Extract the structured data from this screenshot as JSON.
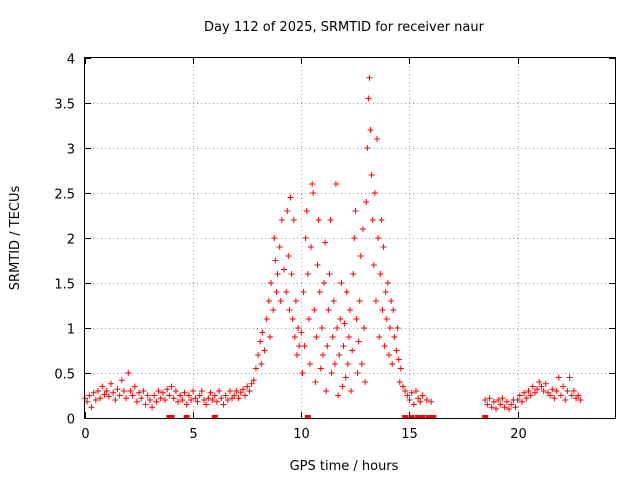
{
  "chart_data": {
    "type": "scatter",
    "title": "Day 112 of 2025, SRMTID for receiver naur",
    "xlabel": "GPS time / hours",
    "ylabel": "SRMTID / TECUs",
    "xlim": [
      0,
      24.5
    ],
    "ylim": [
      0,
      4
    ],
    "xticks": [
      0,
      5,
      10,
      15,
      20
    ],
    "yticks": [
      0,
      0.5,
      1,
      1.5,
      2,
      2.5,
      3,
      3.5,
      4
    ],
    "ytick_labels": [
      "0",
      "0.5",
      "1",
      "1.5",
      "2",
      "2.5",
      "3",
      "3.5",
      "4"
    ],
    "grid": true,
    "marker": "+",
    "series": [
      {
        "name": "SRMTID",
        "color": "#ff0000",
        "points": [
          [
            0.0,
            0.22
          ],
          [
            0.1,
            0.18
          ],
          [
            0.2,
            0.25
          ],
          [
            0.3,
            0.12
          ],
          [
            0.4,
            0.28
          ],
          [
            0.5,
            0.2
          ],
          [
            0.6,
            0.3
          ],
          [
            0.7,
            0.22
          ],
          [
            0.8,
            0.35
          ],
          [
            0.9,
            0.26
          ],
          [
            1.0,
            0.3
          ],
          [
            1.1,
            0.24
          ],
          [
            1.2,
            0.38
          ],
          [
            1.3,
            0.28
          ],
          [
            1.4,
            0.2
          ],
          [
            1.5,
            0.32
          ],
          [
            1.6,
            0.25
          ],
          [
            1.7,
            0.42
          ],
          [
            1.8,
            0.3
          ],
          [
            1.9,
            0.22
          ],
          [
            2.0,
            0.5
          ],
          [
            2.1,
            0.3
          ],
          [
            2.2,
            0.25
          ],
          [
            2.3,
            0.35
          ],
          [
            2.4,
            0.18
          ],
          [
            2.5,
            0.28
          ],
          [
            2.6,
            0.22
          ],
          [
            2.7,
            0.3
          ],
          [
            2.8,
            0.15
          ],
          [
            2.9,
            0.25
          ],
          [
            3.0,
            0.2
          ],
          [
            3.1,
            0.12
          ],
          [
            3.2,
            0.25
          ],
          [
            3.3,
            0.18
          ],
          [
            3.4,
            0.3
          ],
          [
            3.5,
            0.22
          ],
          [
            3.6,
            0.28
          ],
          [
            3.7,
            0.2
          ],
          [
            3.8,
            0.32
          ],
          [
            3.9,
            0.25
          ],
          [
            4.0,
            0.35
          ],
          [
            4.1,
            0.22
          ],
          [
            4.2,
            0.3
          ],
          [
            4.3,
            0.18
          ],
          [
            4.4,
            0.25
          ],
          [
            4.5,
            0.2
          ],
          [
            4.6,
            0.28
          ],
          [
            4.7,
            0.15
          ],
          [
            4.8,
            0.25
          ],
          [
            4.9,
            0.2
          ],
          [
            5.0,
            0.3
          ],
          [
            5.1,
            0.22
          ],
          [
            5.2,
            0.18
          ],
          [
            5.3,
            0.25
          ],
          [
            5.4,
            0.3
          ],
          [
            5.5,
            0.2
          ],
          [
            5.6,
            0.15
          ],
          [
            5.7,
            0.22
          ],
          [
            5.8,
            0.28
          ],
          [
            5.9,
            0.2
          ],
          [
            6.0,
            0.25
          ],
          [
            6.1,
            0.18
          ],
          [
            6.2,
            0.3
          ],
          [
            6.3,
            0.22
          ],
          [
            6.4,
            0.15
          ],
          [
            6.5,
            0.25
          ],
          [
            6.6,
            0.2
          ],
          [
            6.7,
            0.3
          ],
          [
            6.8,
            0.22
          ],
          [
            6.9,
            0.25
          ],
          [
            7.0,
            0.3
          ],
          [
            7.1,
            0.22
          ],
          [
            7.2,
            0.28
          ],
          [
            7.3,
            0.32
          ],
          [
            7.4,
            0.25
          ],
          [
            7.5,
            0.35
          ],
          [
            7.6,
            0.3
          ],
          [
            7.7,
            0.38
          ],
          [
            7.8,
            0.42
          ],
          [
            7.9,
            0.55
          ],
          [
            8.0,
            0.7
          ],
          [
            8.1,
            0.85
          ],
          [
            8.15,
            0.6
          ],
          [
            8.2,
            0.95
          ],
          [
            8.3,
            0.75
          ],
          [
            8.4,
            1.1
          ],
          [
            8.5,
            1.3
          ],
          [
            8.55,
            0.9
          ],
          [
            8.6,
            1.5
          ],
          [
            8.7,
            1.2
          ],
          [
            8.75,
            2.0
          ],
          [
            8.8,
            1.75
          ],
          [
            8.85,
            1.4
          ],
          [
            8.9,
            1.6
          ],
          [
            9.0,
            1.9
          ],
          [
            9.05,
            1.3
          ],
          [
            9.1,
            2.2
          ],
          [
            9.2,
            1.65
          ],
          [
            9.3,
            1.4
          ],
          [
            9.35,
            2.3
          ],
          [
            9.4,
            1.8
          ],
          [
            9.45,
            1.2
          ],
          [
            9.5,
            2.45
          ],
          [
            9.55,
            1.6
          ],
          [
            9.6,
            1.1
          ],
          [
            9.65,
            2.2
          ],
          [
            9.7,
            0.9
          ],
          [
            9.75,
            1.3
          ],
          [
            9.8,
            0.7
          ],
          [
            9.85,
            1.0
          ],
          [
            9.9,
            0.8
          ],
          [
            10.0,
            0.95
          ],
          [
            10.05,
            0.5
          ],
          [
            10.1,
            1.4
          ],
          [
            10.15,
            0.8
          ],
          [
            10.2,
            2.0
          ],
          [
            10.25,
            2.3
          ],
          [
            10.3,
            1.6
          ],
          [
            10.35,
            1.1
          ],
          [
            10.4,
            0.6
          ],
          [
            10.45,
            1.9
          ],
          [
            10.5,
            2.6
          ],
          [
            10.55,
            2.5
          ],
          [
            10.6,
            1.2
          ],
          [
            10.65,
            0.4
          ],
          [
            10.7,
            0.9
          ],
          [
            10.75,
            1.7
          ],
          [
            10.8,
            2.2
          ],
          [
            10.85,
            1.4
          ],
          [
            10.9,
            0.55
          ],
          [
            10.95,
            1.0
          ],
          [
            11.0,
            0.7
          ],
          [
            11.05,
            1.5
          ],
          [
            11.1,
            1.95
          ],
          [
            11.15,
            0.3
          ],
          [
            11.2,
            0.8
          ],
          [
            11.25,
            1.2
          ],
          [
            11.3,
            1.6
          ],
          [
            11.35,
            2.2
          ],
          [
            11.4,
            0.5
          ],
          [
            11.45,
            0.9
          ],
          [
            11.5,
            1.3
          ],
          [
            11.55,
            0.6
          ],
          [
            11.6,
            2.6
          ],
          [
            11.65,
            1.0
          ],
          [
            11.7,
            0.25
          ],
          [
            11.75,
            0.7
          ],
          [
            11.8,
            1.1
          ],
          [
            11.85,
            1.5
          ],
          [
            11.9,
            0.35
          ],
          [
            11.95,
            0.8
          ],
          [
            12.0,
            1.05
          ],
          [
            12.05,
            0.45
          ],
          [
            12.1,
            1.4
          ],
          [
            12.15,
            0.6
          ],
          [
            12.2,
            0.9
          ],
          [
            12.25,
            1.2
          ],
          [
            12.3,
            0.3
          ],
          [
            12.35,
            0.75
          ],
          [
            12.4,
            1.6
          ],
          [
            12.45,
            2.0
          ],
          [
            12.5,
            2.3
          ],
          [
            12.55,
            1.1
          ],
          [
            12.6,
            0.5
          ],
          [
            12.65,
            0.85
          ],
          [
            12.7,
            1.3
          ],
          [
            12.75,
            1.8
          ],
          [
            12.8,
            0.6
          ],
          [
            12.85,
            2.1
          ],
          [
            12.9,
            1.0
          ],
          [
            12.95,
            0.4
          ],
          [
            13.0,
            2.4
          ],
          [
            13.05,
            3.0
          ],
          [
            13.1,
            3.55
          ],
          [
            13.15,
            3.78
          ],
          [
            13.2,
            3.2
          ],
          [
            13.25,
            2.7
          ],
          [
            13.3,
            2.2
          ],
          [
            13.35,
            1.7
          ],
          [
            13.4,
            2.5
          ],
          [
            13.45,
            1.3
          ],
          [
            13.5,
            3.1
          ],
          [
            13.55,
            2.0
          ],
          [
            13.6,
            0.9
          ],
          [
            13.65,
            1.6
          ],
          [
            13.7,
            2.2
          ],
          [
            13.75,
            1.2
          ],
          [
            13.8,
            1.9
          ],
          [
            13.85,
            0.8
          ],
          [
            13.9,
            1.4
          ],
          [
            13.95,
            1.1
          ],
          [
            14.0,
            1.5
          ],
          [
            14.05,
            0.7
          ],
          [
            14.1,
            1.0
          ],
          [
            14.15,
            1.3
          ],
          [
            14.2,
            0.6
          ],
          [
            14.25,
            1.2
          ],
          [
            14.3,
            0.9
          ],
          [
            14.4,
            0.75
          ],
          [
            14.45,
            1.0
          ],
          [
            14.5,
            0.65
          ],
          [
            14.55,
            0.4
          ],
          [
            14.6,
            0.55
          ],
          [
            14.7,
            0.35
          ],
          [
            14.8,
            0.3
          ],
          [
            14.9,
            0.25
          ],
          [
            15.0,
            0.2
          ],
          [
            15.1,
            0.28
          ],
          [
            15.2,
            0.15
          ],
          [
            15.3,
            0.3
          ],
          [
            15.4,
            0.22
          ],
          [
            15.5,
            0.18
          ],
          [
            15.6,
            0.25
          ],
          [
            15.8,
            0.2
          ],
          [
            16.0,
            0.18
          ],
          [
            18.5,
            0.2
          ],
          [
            18.6,
            0.15
          ],
          [
            18.7,
            0.22
          ],
          [
            18.8,
            0.12
          ],
          [
            18.9,
            0.18
          ],
          [
            19.0,
            0.1
          ],
          [
            19.1,
            0.2
          ],
          [
            19.2,
            0.15
          ],
          [
            19.3,
            0.22
          ],
          [
            19.4,
            0.12
          ],
          [
            19.5,
            0.18
          ],
          [
            19.6,
            0.1
          ],
          [
            19.7,
            0.15
          ],
          [
            19.8,
            0.2
          ],
          [
            19.9,
            0.12
          ],
          [
            20.0,
            0.2
          ],
          [
            20.1,
            0.25
          ],
          [
            20.2,
            0.18
          ],
          [
            20.3,
            0.28
          ],
          [
            20.4,
            0.22
          ],
          [
            20.5,
            0.3
          ],
          [
            20.6,
            0.25
          ],
          [
            20.7,
            0.35
          ],
          [
            20.8,
            0.28
          ],
          [
            20.9,
            0.32
          ],
          [
            21.0,
            0.4
          ],
          [
            21.1,
            0.35
          ],
          [
            21.2,
            0.3
          ],
          [
            21.3,
            0.38
          ],
          [
            21.4,
            0.28
          ],
          [
            21.5,
            0.25
          ],
          [
            21.6,
            0.32
          ],
          [
            21.7,
            0.22
          ],
          [
            21.8,
            0.3
          ],
          [
            21.9,
            0.45
          ],
          [
            22.0,
            0.25
          ],
          [
            22.1,
            0.35
          ],
          [
            22.2,
            0.2
          ],
          [
            22.3,
            0.3
          ],
          [
            22.4,
            0.45
          ],
          [
            22.5,
            0.25
          ],
          [
            22.6,
            0.3
          ],
          [
            22.7,
            0.22
          ],
          [
            22.8,
            0.25
          ],
          [
            22.9,
            0.2
          ]
        ],
        "zero_points": [
          3.9,
          4.0,
          4.7,
          6.0,
          10.3,
          14.8,
          15.1,
          15.4,
          15.6,
          15.9,
          16.1,
          18.5
        ]
      }
    ]
  }
}
